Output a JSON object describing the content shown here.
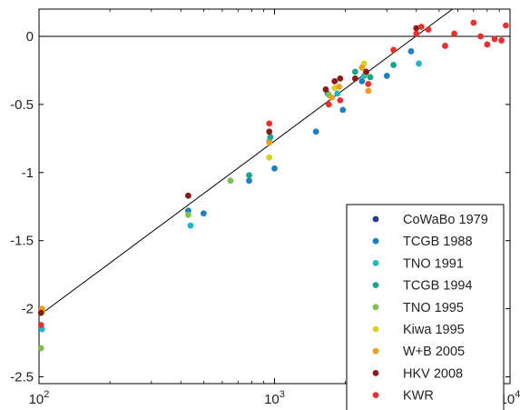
{
  "chart_data": {
    "type": "scatter",
    "title": "",
    "xlabel": "",
    "ylabel": "",
    "x_scale": "log",
    "xlim": [
      100,
      10000
    ],
    "ylim": [
      -2.55,
      0.2
    ],
    "x_ticks": [
      {
        "value": 100,
        "base": "10",
        "exp": "2"
      },
      {
        "value": 1000,
        "base": "10",
        "exp": "3"
      },
      {
        "value": 10000,
        "base": "10",
        "exp": "4"
      }
    ],
    "y_ticks": [
      {
        "value": 0,
        "label": "0"
      },
      {
        "value": -0.5,
        "label": "-0.5"
      },
      {
        "value": -1,
        "label": "-1"
      },
      {
        "value": -1.5,
        "label": "-1.5"
      },
      {
        "value": -2,
        "label": "-2"
      },
      {
        "value": -2.5,
        "label": "-2.5"
      }
    ],
    "reference_lines": [
      {
        "type": "horizontal",
        "y": 0,
        "color": "#000000"
      },
      {
        "type": "fit",
        "points": [
          [
            100,
            -2.05
          ],
          [
            5700,
            0.2
          ]
        ],
        "color": "#000000"
      }
    ],
    "legend": {
      "position": "bottom-right"
    },
    "grid": false,
    "series": [
      {
        "name": "CoWaBo 1979",
        "color": "#1f3e8c",
        "points": []
      },
      {
        "name": "TCGB 1988",
        "color": "#1e7fc2",
        "points": [
          [
            430,
            -1.28
          ],
          [
            500,
            -1.3
          ],
          [
            780,
            -1.06
          ],
          [
            1000,
            -0.97
          ],
          [
            1500,
            -0.7
          ],
          [
            1950,
            -0.54
          ],
          [
            2350,
            -0.33
          ],
          [
            3000,
            -0.29
          ],
          [
            3800,
            -0.11
          ]
        ]
      },
      {
        "name": "TNO 1991",
        "color": "#1cb8c8",
        "points": [
          [
            103,
            -2.15
          ],
          [
            440,
            -1.39
          ],
          [
            950,
            -0.77
          ],
          [
            1850,
            -0.42
          ],
          [
            2400,
            -0.29
          ],
          [
            4100,
            -0.2
          ]
        ]
      },
      {
        "name": "TCGB 1994",
        "color": "#17a58c",
        "points": [
          [
            780,
            -1.02
          ],
          [
            960,
            -0.74
          ],
          [
            1680,
            -0.42
          ],
          [
            2200,
            -0.26
          ],
          [
            2550,
            -0.3
          ],
          [
            3200,
            -0.21
          ]
        ]
      },
      {
        "name": "TNO 1995",
        "color": "#7cc04a",
        "points": [
          [
            102,
            -2.29
          ],
          [
            430,
            -1.31
          ],
          [
            650,
            -1.06
          ],
          [
            1700,
            -0.43
          ],
          [
            2450,
            -0.27
          ]
        ]
      },
      {
        "name": "Kiwa 1995",
        "color": "#d6d41a",
        "points": [
          [
            103,
            -2.02
          ],
          [
            950,
            -0.89
          ],
          [
            1800,
            -0.38
          ],
          [
            2400,
            -0.2
          ]
        ]
      },
      {
        "name": "W+B 2005",
        "color": "#f39b1d",
        "points": [
          [
            103,
            -2.0
          ],
          [
            950,
            -0.78
          ],
          [
            1750,
            -0.45
          ],
          [
            1880,
            -0.37
          ],
          [
            2500,
            -0.4
          ],
          [
            2350,
            -0.23
          ]
        ]
      },
      {
        "name": "HKV 2008",
        "color": "#8b1a1a",
        "points": [
          [
            102,
            -2.03
          ],
          [
            430,
            -1.17
          ],
          [
            950,
            -0.7
          ],
          [
            1650,
            -0.39
          ],
          [
            1800,
            -0.33
          ],
          [
            1900,
            -0.31
          ],
          [
            2200,
            -0.31
          ],
          [
            2450,
            -0.26
          ],
          [
            4000,
            0.06
          ]
        ]
      },
      {
        "name": "KWR",
        "color": "#e8312f",
        "points": [
          [
            102,
            -2.12
          ],
          [
            950,
            -0.64
          ],
          [
            1700,
            -0.5
          ],
          [
            1900,
            -0.47
          ],
          [
            2500,
            -0.35
          ],
          [
            3200,
            -0.1
          ],
          [
            4000,
            0.02
          ],
          [
            4200,
            0.07
          ],
          [
            4500,
            0.05
          ],
          [
            5300,
            -0.07
          ],
          [
            5800,
            0.02
          ],
          [
            7000,
            0.1
          ],
          [
            7500,
            0.0
          ],
          [
            8000,
            -0.06
          ],
          [
            8600,
            -0.02
          ],
          [
            9200,
            -0.03
          ],
          [
            9600,
            0.08
          ]
        ]
      }
    ]
  }
}
